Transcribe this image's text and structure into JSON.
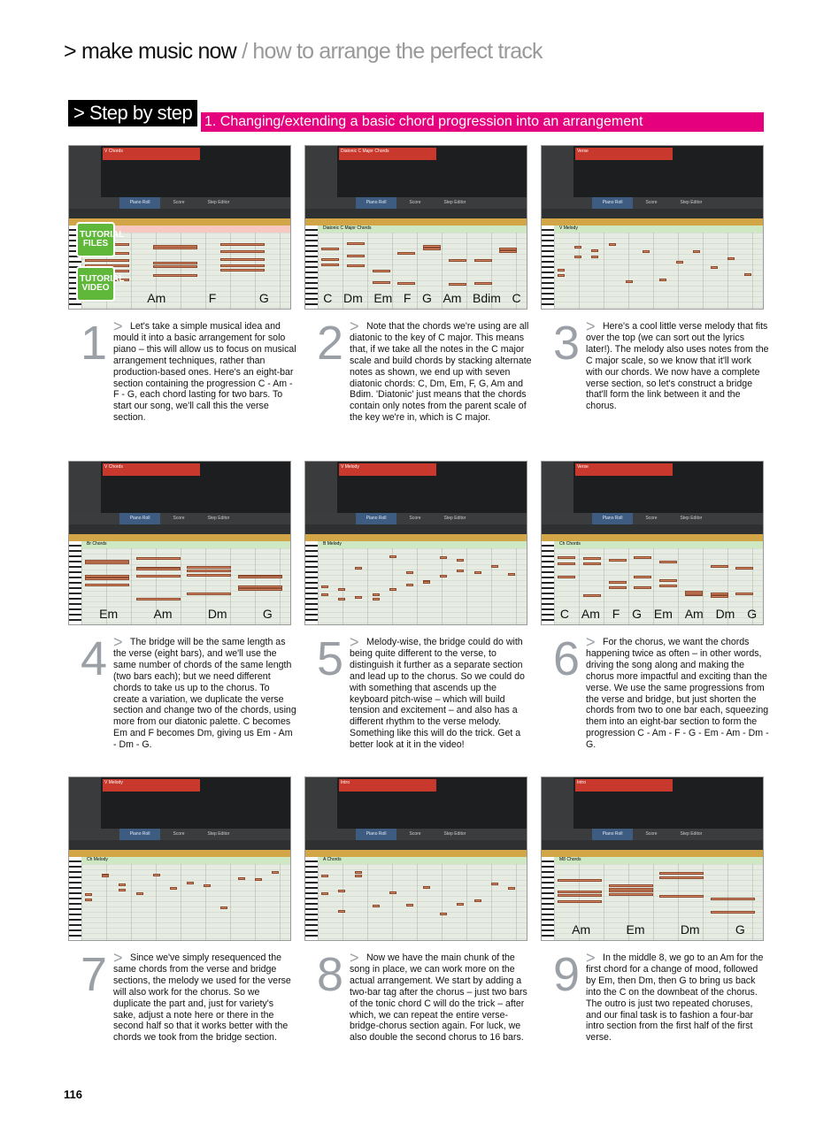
{
  "header": {
    "section": "> make music now",
    "subtitle": " / how to arrange the perfect track"
  },
  "box_label": "> Step by step",
  "bar_title": "1. Changing/extending a basic chord progression into an arrangement",
  "badges": {
    "files": "TUTORIAL FILES",
    "video": "TUTORIAL VIDEO"
  },
  "editor_tabs": [
    "Piano Roll",
    "Score",
    "Step Editor"
  ],
  "panels": [
    {
      "region": "V Chords",
      "lane": "",
      "chords": [
        "Am",
        "F",
        "G"
      ]
    },
    {
      "region": "Diatonic C Major Chords",
      "lane": "Diatonic C Major Chords",
      "chords": [
        "C",
        "Dm",
        "Em",
        "F",
        "G",
        "Am",
        "Bdim",
        "C"
      ]
    },
    {
      "region": "Verse",
      "lane": "V Melody",
      "chords": []
    },
    {
      "region": "V Chords",
      "lane": "Br Chords",
      "chords": [
        "Em",
        "Am",
        "Dm",
        "G"
      ]
    },
    {
      "region": "V Melody",
      "lane": "B Melody",
      "chords": []
    },
    {
      "region": "Verse",
      "lane": "Ch Chords",
      "chords": [
        "C",
        "Am",
        "F",
        "G",
        "Em",
        "Am",
        "Dm",
        "G"
      ]
    },
    {
      "region": "V Melody",
      "lane": "Ch Melody",
      "chords": []
    },
    {
      "region": "Intro",
      "lane": "A Chords",
      "chords": []
    },
    {
      "region": "Intro",
      "lane": "M8 Chords",
      "chords": [
        "Am",
        "Em",
        "Dm",
        "G"
      ]
    }
  ],
  "steps": [
    {
      "num": "1",
      "text": "Let's take a simple musical idea and mould it into a basic arrangement for solo piano – this will allow us to focus on musical arrangement techniques, rather than production-based ones. Here's an eight-bar section containing the progression C - Am - F - G, each chord lasting for two bars. To start our song, we'll call this the verse section."
    },
    {
      "num": "2",
      "text": "Note that the chords we're using are all diatonic to the key of C major. This means that, if we take all the notes in the C major scale and build chords by stacking alternate notes as shown, we end up with seven diatonic chords: C, Dm, Em, F, G, Am and Bdim. 'Diatonic' just means that the chords contain only notes from the parent scale of the key we're in, which is C major."
    },
    {
      "num": "3",
      "text": "Here's a cool little verse melody that fits over the top (we can sort out the lyrics later!). The melody also uses notes from the C major scale, so we know that it'll work with our chords. We now have a complete verse section, so let's construct a bridge that'll form the link between it and the chorus."
    },
    {
      "num": "4",
      "text": "The bridge will be the same length as the verse (eight bars), and we'll use the same number of chords of the same length (two bars each); but we need different chords to take us up to the chorus. To create a variation, we duplicate the verse section and change two of the chords, using more from our diatonic palette. C becomes Em and F becomes Dm, giving us Em - Am - Dm - G."
    },
    {
      "num": "5",
      "text": "Melody-wise, the bridge could do with being quite different to the verse, to distinguish it further as a separate section and lead up to the chorus. So we could do with something that ascends up the keyboard pitch-wise – which will build tension and excitement – and also has a different rhythm to the verse melody. Something like this will do the trick. Get a better look at it in the video!"
    },
    {
      "num": "6",
      "text": "For the chorus, we want the chords happening twice as often – in other words, driving the song along and making the chorus more impactful and exciting than the verse. We use the same progressions from the verse and bridge, but just shorten the chords from two to one bar each, squeezing them into an eight-bar section to form the progression C - Am - F - G - Em - Am - Dm - G."
    },
    {
      "num": "7",
      "text": "Since we've simply resequenced the same chords from the verse and bridge sections, the melody we used for the verse will also work for the chorus. So we duplicate the part and, just for variety's sake, adjust a note here or there in the second half so that it works better with the chords we took from the bridge section."
    },
    {
      "num": "8",
      "text": "Now we have the main chunk of the song in place, we can work more on the actual arrangement. We start by adding a two-bar tag after the chorus – just two bars of the tonic chord C will do the trick – after which, we can repeat the entire verse-bridge-chorus section again. For luck, we also double the second chorus to 16 bars."
    },
    {
      "num": "9",
      "text": "In the middle 8, we go to an Am for the first chord for a change of mood, followed by Em, then Dm, then G to bring us back into the C on the downbeat of the chorus. The outro is just two repeated choruses, and our final task is to fashion a four-bar intro section from the first half of the first verse."
    }
  ],
  "page_number": "116"
}
